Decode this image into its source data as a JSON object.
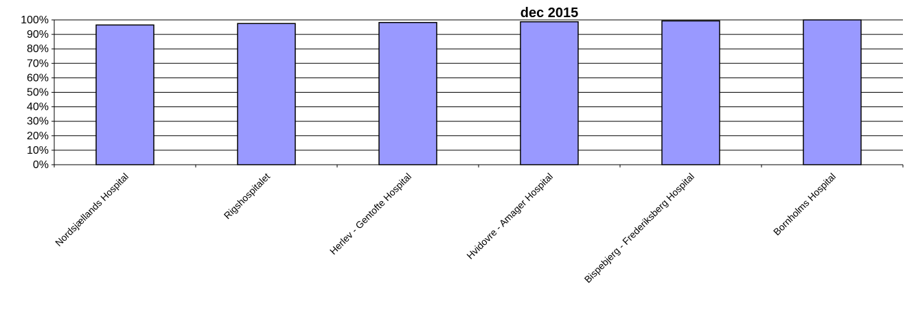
{
  "chart_data": {
    "type": "bar",
    "title": "dec 2015",
    "categories": [
      "Nordsjællands Hospital",
      "Rigshospitalet",
      "Herlev - Gentofte Hospital",
      "Hvidovre - Amager Hospital",
      "Bispebjerg - Frederiksberg Hospital",
      "Bornholms Hospital"
    ],
    "values": [
      96.5,
      97.5,
      98.2,
      98.7,
      99.3,
      100
    ],
    "ylim": [
      0,
      100
    ],
    "yticks": [
      "0%",
      "10%",
      "20%",
      "30%",
      "40%",
      "50%",
      "60%",
      "70%",
      "80%",
      "90%",
      "100%"
    ],
    "xlabel": "",
    "ylabel": "",
    "grid": true,
    "legend": false,
    "bar_color": "#9999ff",
    "bar_edge_color": "#000000"
  }
}
